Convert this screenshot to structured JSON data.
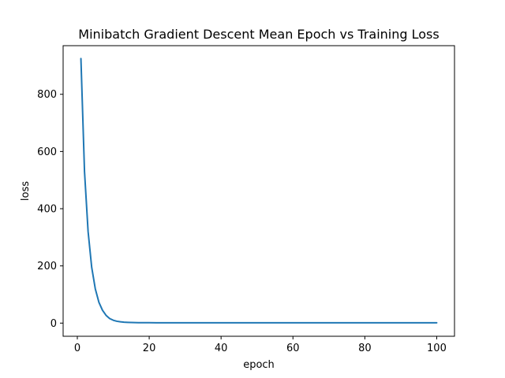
{
  "chart_data": {
    "type": "line",
    "title": "Minibatch Gradient Descent Mean Epoch vs Training Loss",
    "xlabel": "epoch",
    "ylabel": "loss",
    "xlim": [
      -3.95,
      104.95
    ],
    "ylim": [
      -46,
      970
    ],
    "xticks": [
      0,
      20,
      40,
      60,
      80,
      100
    ],
    "yticks": [
      0,
      200,
      400,
      600,
      800
    ],
    "grid": false,
    "legend": "none",
    "series": [
      {
        "color": "#1f77b4",
        "x": [
          1,
          2,
          3,
          4,
          5,
          6,
          7,
          8,
          9,
          10,
          11,
          12,
          13,
          14,
          15,
          16,
          17,
          18,
          19,
          20,
          22,
          25,
          30,
          35,
          40,
          45,
          50,
          55,
          60,
          65,
          70,
          75,
          80,
          85,
          90,
          95,
          100
        ],
        "y": [
          925,
          530,
          320,
          195,
          120,
          73,
          45,
          27,
          16,
          10,
          6.5,
          4.5,
          3.3,
          2.6,
          2.1,
          1.8,
          1.6,
          1.5,
          1.4,
          1.35,
          1.3,
          1.25,
          1.2,
          1.2,
          1.2,
          1.2,
          1.2,
          1.2,
          1.2,
          1.2,
          1.2,
          1.2,
          1.2,
          1.2,
          1.2,
          1.2,
          1.2
        ]
      }
    ]
  }
}
